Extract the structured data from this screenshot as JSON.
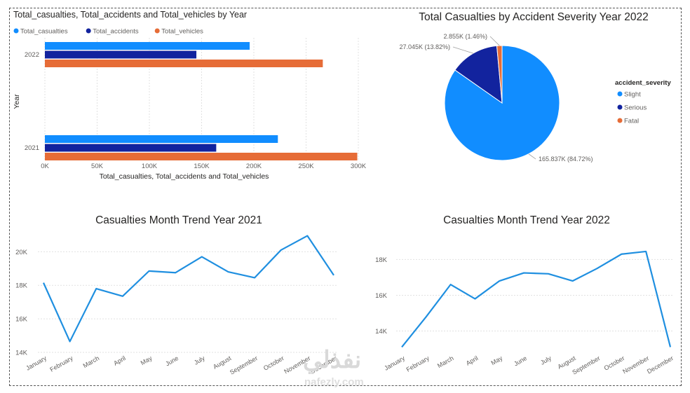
{
  "chart_data": [
    {
      "type": "bar",
      "title": "Total_casualties, Total_accidents and Total_vehicles by Year",
      "xlabel": "Total_casualties, Total_accidents and Total_vehicles",
      "ylabel": "Year",
      "categories": [
        "2022",
        "2021"
      ],
      "series": [
        {
          "name": "Total_casualties",
          "values": [
            196000,
            223000
          ]
        },
        {
          "name": "Total_accidents",
          "values": [
            145000,
            164000
          ]
        },
        {
          "name": "Total_vehicles",
          "values": [
            266000,
            299000
          ]
        }
      ],
      "xlim": [
        0,
        300000
      ],
      "xticks": [
        "0K",
        "50K",
        "100K",
        "150K",
        "200K",
        "250K",
        "300K"
      ],
      "legend": "top-left",
      "grid": true
    },
    {
      "type": "pie",
      "title": "Total Casualties by Accident Severity Year 2022",
      "legend_title": "accident_severity",
      "legend": "right",
      "labels": [
        "Slight",
        "Serious",
        "Fatal"
      ],
      "values": [
        165837,
        27045,
        2855
      ],
      "data_labels": [
        "165.837K (84.72%)",
        "27.045K (13.82%)",
        "2.855K (1.46%)"
      ]
    },
    {
      "type": "line",
      "title": "Casualties Month Trend Year 2021",
      "x": [
        "January",
        "February",
        "March",
        "April",
        "May",
        "June",
        "July",
        "August",
        "September",
        "October",
        "November",
        "December"
      ],
      "y": [
        18150,
        14650,
        17800,
        17350,
        18850,
        18750,
        19700,
        18800,
        18450,
        20100,
        20950,
        18600
      ],
      "ylim": [
        14000,
        21100
      ],
      "yticks": [
        "14K",
        "16K",
        "18K",
        "20K"
      ],
      "grid": true
    },
    {
      "type": "line",
      "title": "Casualties Month Trend Year 2022",
      "x": [
        "January",
        "February",
        "March",
        "April",
        "May",
        "June",
        "July",
        "August",
        "September",
        "October",
        "November",
        "December"
      ],
      "y": [
        13100,
        14800,
        16600,
        15800,
        16800,
        17250,
        17200,
        16800,
        17500,
        18300,
        18450,
        13100
      ],
      "ylim": [
        13000,
        18800
      ],
      "yticks": [
        "14K",
        "16K",
        "18K"
      ],
      "grid": true
    }
  ],
  "colors": {
    "casualties": "#118DFF",
    "accidents": "#12239E",
    "vehicles": "#E66C37",
    "line": "#1F8FE0"
  },
  "watermark": {
    "arabic": "نفذلي",
    "url": "nafezly.com"
  }
}
